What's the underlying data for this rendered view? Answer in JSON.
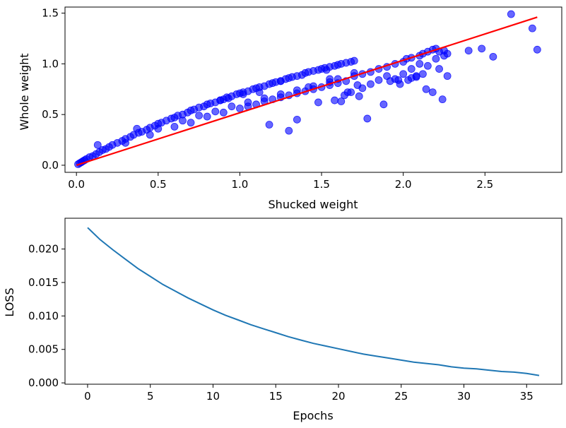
{
  "colors": {
    "scatter": "#0000ff",
    "fit_line": "#ff0000",
    "loss_line": "#1f77b4"
  },
  "chart_data": [
    {
      "type": "scatter",
      "title": "",
      "xlabel": "Shucked weight",
      "ylabel": "Whole weight",
      "xlim": [
        -0.07,
        2.97
      ],
      "ylim": [
        -0.07,
        1.56
      ],
      "xticks": [
        0.0,
        0.5,
        1.0,
        1.5,
        2.0,
        2.5
      ],
      "xtick_labels": [
        "0.0",
        "0.5",
        "1.0",
        "1.5",
        "2.0",
        "2.5"
      ],
      "yticks": [
        0.0,
        0.5,
        1.0,
        1.5
      ],
      "ytick_labels": [
        "0.0",
        "0.5",
        "1.0",
        "1.5"
      ],
      "grid": false,
      "series": [
        {
          "kind": "points",
          "color": "#0000ff",
          "alpha": 0.6,
          "x": [
            0.01,
            0.02,
            0.03,
            0.04,
            0.05,
            0.06,
            0.08,
            0.1,
            0.12,
            0.14,
            0.16,
            0.18,
            0.2,
            0.22,
            0.25,
            0.28,
            0.3,
            0.33,
            0.35,
            0.38,
            0.4,
            0.43,
            0.45,
            0.48,
            0.5,
            0.52,
            0.55,
            0.58,
            0.6,
            0.62,
            0.65,
            0.68,
            0.7,
            0.72,
            0.75,
            0.78,
            0.8,
            0.82,
            0.85,
            0.88,
            0.9,
            0.92,
            0.95,
            0.98,
            1.0,
            1.02,
            1.05,
            1.08,
            1.1,
            1.12,
            1.15,
            1.18,
            1.2,
            1.22,
            1.25,
            1.28,
            1.3,
            1.32,
            1.35,
            1.38,
            1.4,
            1.42,
            1.45,
            1.48,
            1.5,
            1.52,
            1.55,
            1.58,
            1.6,
            1.62,
            1.65,
            1.68,
            1.7,
            0.3,
            0.45,
            0.6,
            0.7,
            0.8,
            0.9,
            1.0,
            1.05,
            1.1,
            1.15,
            1.2,
            1.25,
            1.3,
            1.35,
            1.4,
            1.45,
            1.5,
            1.55,
            1.6,
            1.65,
            0.5,
            0.65,
            0.75,
            0.85,
            0.95,
            1.05,
            1.15,
            1.25,
            1.35,
            1.45,
            1.55,
            1.6,
            1.7,
            1.75,
            1.8,
            1.85,
            1.9,
            1.95,
            2.0,
            2.02,
            2.05,
            2.1,
            2.12,
            2.15,
            2.18,
            2.2,
            2.22,
            2.25,
            2.27,
            2.0,
            1.95,
            2.05,
            2.1,
            2.2,
            2.15,
            2.25,
            1.9,
            1.85,
            1.8,
            1.75,
            1.72,
            1.68,
            0.13,
            0.37,
            1.53,
            1.25,
            1.02,
            1.12,
            0.88,
            0.93,
            1.42,
            1.55,
            1.7,
            1.98,
            2.03,
            2.08,
            2.12,
            2.22,
            2.14,
            2.18,
            2.24,
            2.27,
            2.48,
            2.55,
            2.4,
            2.66,
            2.79,
            2.82,
            1.88,
            1.62,
            1.78,
            1.92,
            1.97,
            2.05,
            2.08,
            1.66,
            1.73,
            1.3,
            1.35,
            1.18,
            1.48,
            1.58,
            1.64
          ],
          "y": [
            0.01,
            0.02,
            0.03,
            0.04,
            0.05,
            0.06,
            0.08,
            0.09,
            0.11,
            0.13,
            0.15,
            0.16,
            0.18,
            0.2,
            0.22,
            0.24,
            0.26,
            0.28,
            0.3,
            0.32,
            0.33,
            0.35,
            0.37,
            0.39,
            0.41,
            0.42,
            0.44,
            0.46,
            0.47,
            0.49,
            0.5,
            0.52,
            0.54,
            0.55,
            0.57,
            0.58,
            0.6,
            0.61,
            0.62,
            0.64,
            0.65,
            0.67,
            0.68,
            0.7,
            0.71,
            0.72,
            0.73,
            0.75,
            0.76,
            0.77,
            0.78,
            0.8,
            0.81,
            0.82,
            0.83,
            0.85,
            0.86,
            0.87,
            0.88,
            0.89,
            0.91,
            0.92,
            0.93,
            0.94,
            0.95,
            0.96,
            0.97,
            0.98,
            0.99,
            1.0,
            1.01,
            1.02,
            1.03,
            0.22,
            0.3,
            0.38,
            0.42,
            0.48,
            0.52,
            0.56,
            0.58,
            0.6,
            0.63,
            0.65,
            0.67,
            0.69,
            0.71,
            0.73,
            0.75,
            0.77,
            0.79,
            0.81,
            0.83,
            0.36,
            0.44,
            0.49,
            0.53,
            0.58,
            0.62,
            0.66,
            0.7,
            0.74,
            0.78,
            0.82,
            0.85,
            0.88,
            0.9,
            0.92,
            0.95,
            0.97,
            1.0,
            1.02,
            1.05,
            1.06,
            1.08,
            1.1,
            1.12,
            1.14,
            1.15,
            1.12,
            1.13,
            1.1,
            0.9,
            0.85,
            0.95,
            1.0,
            1.05,
            0.98,
            1.08,
            0.88,
            0.84,
            0.8,
            0.76,
            0.79,
            0.72,
            0.2,
            0.36,
            0.94,
            0.83,
            0.7,
            0.72,
            0.64,
            0.66,
            0.77,
            0.85,
            0.91,
            0.8,
            0.84,
            0.88,
            0.9,
            0.95,
            0.75,
            0.72,
            0.65,
            0.88,
            1.15,
            1.07,
            1.13,
            1.49,
            1.35,
            1.14,
            0.6,
            0.63,
            0.46,
            0.83,
            0.84,
            0.86,
            0.87,
            0.72,
            0.68,
            0.34,
            0.45,
            0.4,
            0.62,
            0.64,
            0.69
          ]
        },
        {
          "kind": "line",
          "color": "#ff0000",
          "x": [
            0.0,
            2.82
          ],
          "y": [
            0.0,
            1.46
          ]
        }
      ]
    },
    {
      "type": "line",
      "title": "",
      "xlabel": "Epochs",
      "ylabel": "LOSS",
      "xlim": [
        -1.8,
        37.8
      ],
      "ylim": [
        -0.0002,
        0.0246
      ],
      "xticks": [
        0,
        5,
        10,
        15,
        20,
        25,
        30,
        35
      ],
      "xtick_labels": [
        "0",
        "5",
        "10",
        "15",
        "20",
        "25",
        "30",
        "35"
      ],
      "yticks": [
        0.0,
        0.005,
        0.01,
        0.015,
        0.02
      ],
      "ytick_labels": [
        "0.000",
        "0.005",
        "0.010",
        "0.015",
        "0.020"
      ],
      "grid": false,
      "series": [
        {
          "color": "#1f77b4",
          "x": [
            0,
            1,
            2,
            3,
            4,
            5,
            6,
            7,
            8,
            9,
            10,
            11,
            12,
            13,
            14,
            15,
            16,
            17,
            18,
            19,
            20,
            21,
            22,
            23,
            24,
            25,
            26,
            27,
            28,
            29,
            30,
            31,
            32,
            33,
            34,
            35,
            36
          ],
          "y": [
            0.0232,
            0.0214,
            0.0199,
            0.0185,
            0.0171,
            0.0159,
            0.0147,
            0.0137,
            0.0127,
            0.0118,
            0.0109,
            0.0101,
            0.0094,
            0.0087,
            0.0081,
            0.0075,
            0.0069,
            0.0064,
            0.0059,
            0.0055,
            0.0051,
            0.0047,
            0.0043,
            0.004,
            0.0037,
            0.0034,
            0.0031,
            0.0029,
            0.0027,
            0.0024,
            0.0022,
            0.0021,
            0.0019,
            0.0017,
            0.0016,
            0.0014,
            0.0011
          ]
        }
      ]
    }
  ]
}
